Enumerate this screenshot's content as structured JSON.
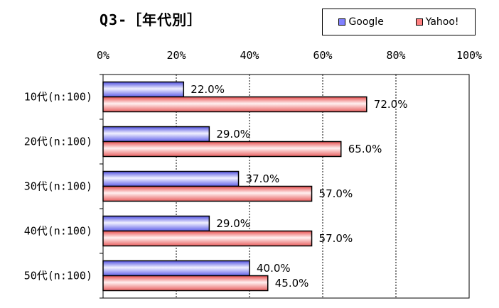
{
  "chart_data": {
    "type": "bar",
    "orientation": "horizontal",
    "title": "Q3-［年代別］",
    "categories": [
      "10代(n:100)",
      "20代(n:100)",
      "30代(n:100)",
      "40代(n:100)",
      "50代(n:100)"
    ],
    "series": [
      {
        "name": "Google",
        "values": [
          22.0,
          29.0,
          37.0,
          29.0,
          40.0
        ],
        "color": "#8080ff",
        "labels": [
          "22.0%",
          "29.0%",
          "37.0%",
          "29.0%",
          "40.0%"
        ]
      },
      {
        "name": "Yahoo!",
        "values": [
          72.0,
          65.0,
          57.0,
          57.0,
          45.0
        ],
        "color": "#ff8080",
        "labels": [
          "72.0%",
          "65.0%",
          "57.0%",
          "57.0%",
          "45.0%"
        ]
      }
    ],
    "xlim": [
      0,
      100
    ],
    "xticks": [
      "0%",
      "20%",
      "40%",
      "60%",
      "80%",
      "100%"
    ],
    "grid": true,
    "legend_position": "top-right"
  }
}
